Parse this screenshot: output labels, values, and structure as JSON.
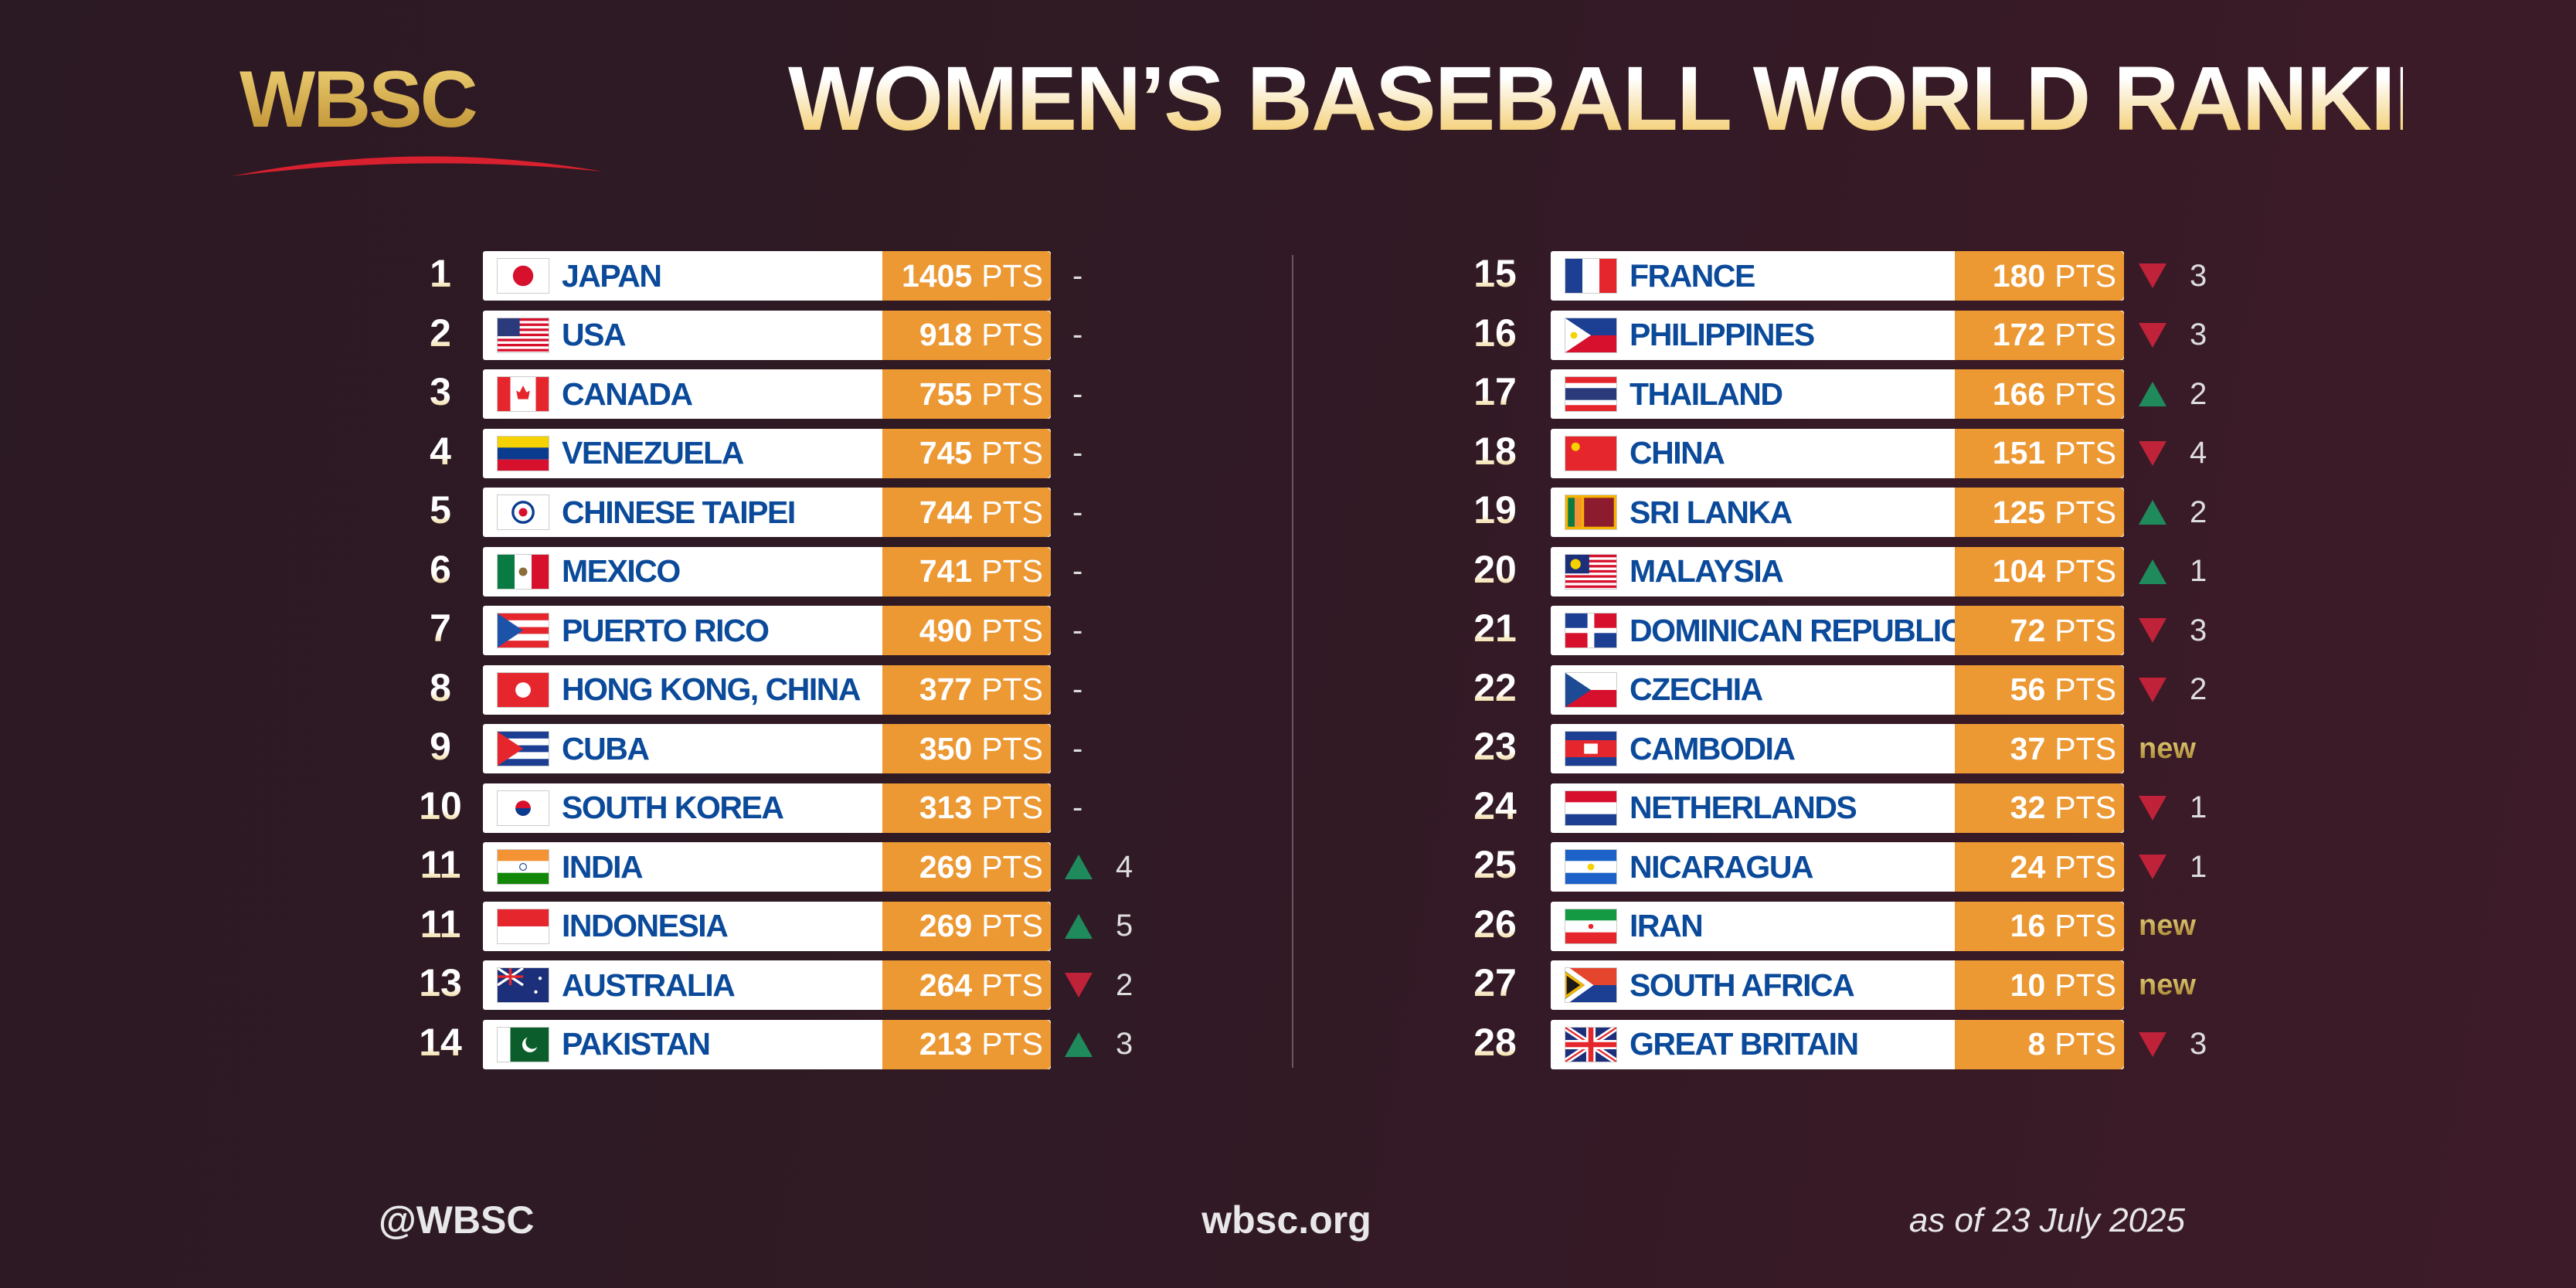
{
  "header": {
    "logo": "WBSC",
    "title": "WOMEN’S BASEBALL WORLD RANKING"
  },
  "pts_label": "PTS",
  "colors": {
    "accent": "#ec9833",
    "name": "#0b4a9a",
    "up": "#1f8a5c",
    "down": "#c0223a"
  },
  "left": [
    {
      "rank": "1",
      "flag": "jp",
      "name": "JAPAN",
      "points": "1405",
      "change": "-",
      "dir": "none"
    },
    {
      "rank": "2",
      "flag": "us",
      "name": "USA",
      "points": "918",
      "change": "-",
      "dir": "none"
    },
    {
      "rank": "3",
      "flag": "ca",
      "name": "CANADA",
      "points": "755",
      "change": "-",
      "dir": "none"
    },
    {
      "rank": "4",
      "flag": "ve",
      "name": "VENEZUELA",
      "points": "745",
      "change": "-",
      "dir": "none"
    },
    {
      "rank": "5",
      "flag": "tpe",
      "name": "CHINESE TAIPEI",
      "points": "744",
      "change": "-",
      "dir": "none"
    },
    {
      "rank": "6",
      "flag": "mx",
      "name": "MEXICO",
      "points": "741",
      "change": "-",
      "dir": "none"
    },
    {
      "rank": "7",
      "flag": "pr",
      "name": "PUERTO RICO",
      "points": "490",
      "change": "-",
      "dir": "none"
    },
    {
      "rank": "8",
      "flag": "hk",
      "name": "HONG KONG, CHINA",
      "points": "377",
      "change": "-",
      "dir": "none"
    },
    {
      "rank": "9",
      "flag": "cu",
      "name": "CUBA",
      "points": "350",
      "change": "-",
      "dir": "none"
    },
    {
      "rank": "10",
      "flag": "kr",
      "name": "SOUTH KOREA",
      "points": "313",
      "change": "-",
      "dir": "none"
    },
    {
      "rank": "11",
      "flag": "in",
      "name": "INDIA",
      "points": "269",
      "change": "4",
      "dir": "up"
    },
    {
      "rank": "11",
      "flag": "id",
      "name": "INDONESIA",
      "points": "269",
      "change": "5",
      "dir": "up"
    },
    {
      "rank": "13",
      "flag": "au",
      "name": "AUSTRALIA",
      "points": "264",
      "change": "2",
      "dir": "down"
    },
    {
      "rank": "14",
      "flag": "pk",
      "name": "PAKISTAN",
      "points": "213",
      "change": "3",
      "dir": "up"
    }
  ],
  "right": [
    {
      "rank": "15",
      "flag": "fr",
      "name": "FRANCE",
      "points": "180",
      "change": "3",
      "dir": "down"
    },
    {
      "rank": "16",
      "flag": "ph",
      "name": "PHILIPPINES",
      "points": "172",
      "change": "3",
      "dir": "down"
    },
    {
      "rank": "17",
      "flag": "th",
      "name": "THAILAND",
      "points": "166",
      "change": "2",
      "dir": "up"
    },
    {
      "rank": "18",
      "flag": "cn",
      "name": "CHINA",
      "points": "151",
      "change": "4",
      "dir": "down"
    },
    {
      "rank": "19",
      "flag": "lk",
      "name": "SRI LANKA",
      "points": "125",
      "change": "2",
      "dir": "up"
    },
    {
      "rank": "20",
      "flag": "my",
      "name": "MALAYSIA",
      "points": "104",
      "change": "1",
      "dir": "up"
    },
    {
      "rank": "21",
      "flag": "do",
      "name": "DOMINICAN REPUBLIC",
      "points": "72",
      "change": "3",
      "dir": "down"
    },
    {
      "rank": "22",
      "flag": "cz",
      "name": "CZECHIA",
      "points": "56",
      "change": "2",
      "dir": "down"
    },
    {
      "rank": "23",
      "flag": "kh",
      "name": "CAMBODIA",
      "points": "37",
      "change": "new",
      "dir": "new"
    },
    {
      "rank": "24",
      "flag": "nl",
      "name": "NETHERLANDS",
      "points": "32",
      "change": "1",
      "dir": "down"
    },
    {
      "rank": "25",
      "flag": "ni",
      "name": "NICARAGUA",
      "points": "24",
      "change": "1",
      "dir": "down"
    },
    {
      "rank": "26",
      "flag": "ir",
      "name": "IRAN",
      "points": "16",
      "change": "new",
      "dir": "new"
    },
    {
      "rank": "27",
      "flag": "za",
      "name": "SOUTH AFRICA",
      "points": "10",
      "change": "new",
      "dir": "new"
    },
    {
      "rank": "28",
      "flag": "gb",
      "name": "GREAT BRITAIN",
      "points": "8",
      "change": "3",
      "dir": "down"
    }
  ],
  "footer": {
    "social": "@WBSC",
    "website": "wbsc.org",
    "date": "as of 23 July 2025"
  }
}
